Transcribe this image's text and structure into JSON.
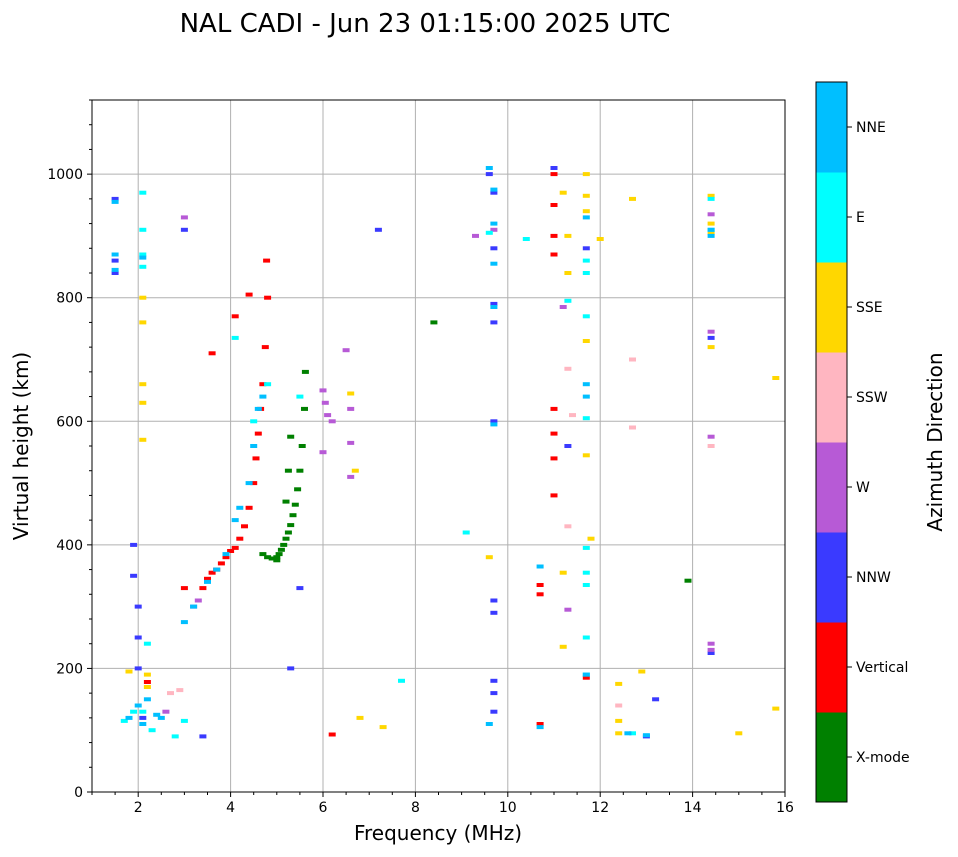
{
  "chart_data": {
    "type": "scatter",
    "title": "NAL CADI - Jun 23 01:15:00 2025 UTC",
    "xlabel": "Frequency (MHz)",
    "ylabel": "Virtual height (km)",
    "xlim": [
      1,
      16
    ],
    "ylim": [
      0,
      1120
    ],
    "xticks": [
      2,
      4,
      6,
      8,
      10,
      12,
      14,
      16
    ],
    "yticks": [
      0,
      200,
      400,
      600,
      800,
      1000
    ],
    "grid": true,
    "colorbar": {
      "label": "Azimuth Direction",
      "categories": [
        "X-mode",
        "Vertical",
        "NNW",
        "W",
        "SSW",
        "SSE",
        "E",
        "NNE"
      ],
      "colors": {
        "X-mode": "#008000",
        "Vertical": "#ff0000",
        "NNW": "#3a3aff",
        "W": "#b75ad6",
        "SSW": "#ffb6c1",
        "SSE": "#ffd700",
        "E": "#00ffff",
        "NNE": "#00bfff"
      }
    },
    "series": [
      {
        "name": "X-mode",
        "points": [
          [
            5.0,
            375
          ],
          [
            5.05,
            385
          ],
          [
            5.1,
            392
          ],
          [
            5.15,
            400
          ],
          [
            5.2,
            410
          ],
          [
            5.25,
            420
          ],
          [
            5.3,
            432
          ],
          [
            5.35,
            448
          ],
          [
            5.4,
            465
          ],
          [
            5.45,
            490
          ],
          [
            5.5,
            520
          ],
          [
            5.55,
            560
          ],
          [
            5.6,
            620
          ],
          [
            5.62,
            680
          ],
          [
            5.2,
            470
          ],
          [
            5.25,
            520
          ],
          [
            5.3,
            575
          ],
          [
            4.7,
            385
          ],
          [
            4.8,
            380
          ],
          [
            4.9,
            378
          ],
          [
            5.0,
            380
          ],
          [
            8.4,
            760
          ],
          [
            13.9,
            342
          ]
        ]
      },
      {
        "name": "Vertical",
        "points": [
          [
            3.4,
            330
          ],
          [
            3.5,
            345
          ],
          [
            3.6,
            355
          ],
          [
            3.7,
            360
          ],
          [
            3.8,
            370
          ],
          [
            3.9,
            380
          ],
          [
            4.0,
            390
          ],
          [
            4.1,
            395
          ],
          [
            4.2,
            410
          ],
          [
            4.3,
            430
          ],
          [
            4.4,
            460
          ],
          [
            4.5,
            500
          ],
          [
            4.55,
            540
          ],
          [
            4.6,
            580
          ],
          [
            4.65,
            620
          ],
          [
            4.7,
            660
          ],
          [
            4.75,
            720
          ],
          [
            4.8,
            800
          ],
          [
            4.78,
            860
          ],
          [
            3.6,
            710
          ],
          [
            4.1,
            770
          ],
          [
            4.4,
            805
          ],
          [
            3.0,
            330
          ],
          [
            2.2,
            178
          ],
          [
            6.2,
            93
          ],
          [
            11.0,
            1000
          ],
          [
            11.0,
            950
          ],
          [
            11.0,
            900
          ],
          [
            11.0,
            870
          ],
          [
            11.0,
            620
          ],
          [
            11.0,
            580
          ],
          [
            11.0,
            540
          ],
          [
            11.0,
            480
          ],
          [
            10.7,
            320
          ],
          [
            10.7,
            335
          ],
          [
            10.7,
            110
          ],
          [
            11.7,
            185
          ]
        ]
      },
      {
        "name": "NNW",
        "points": [
          [
            1.5,
            960
          ],
          [
            1.5,
            860
          ],
          [
            1.5,
            840
          ],
          [
            3.0,
            910
          ],
          [
            2.1,
            120
          ],
          [
            1.9,
            400
          ],
          [
            1.9,
            350
          ],
          [
            2.0,
            300
          ],
          [
            2.0,
            250
          ],
          [
            2.0,
            200
          ],
          [
            3.4,
            90
          ],
          [
            9.6,
            1000
          ],
          [
            9.7,
            970
          ],
          [
            9.7,
            880
          ],
          [
            9.7,
            790
          ],
          [
            9.7,
            760
          ],
          [
            9.7,
            600
          ],
          [
            9.7,
            310
          ],
          [
            9.7,
            290
          ],
          [
            9.7,
            180
          ],
          [
            9.7,
            160
          ],
          [
            9.7,
            130
          ],
          [
            7.2,
            910
          ],
          [
            11.0,
            1010
          ],
          [
            11.3,
            560
          ],
          [
            11.7,
            880
          ],
          [
            13.0,
            90
          ],
          [
            13.2,
            150
          ],
          [
            14.4,
            735
          ],
          [
            14.4,
            225
          ],
          [
            5.5,
            330
          ],
          [
            5.3,
            200
          ]
        ]
      },
      {
        "name": "W",
        "points": [
          [
            6.0,
            650
          ],
          [
            6.05,
            630
          ],
          [
            6.1,
            610
          ],
          [
            6.2,
            600
          ],
          [
            6.0,
            550
          ],
          [
            6.6,
            620
          ],
          [
            6.6,
            565
          ],
          [
            6.6,
            510
          ],
          [
            6.5,
            715
          ],
          [
            3.0,
            930
          ],
          [
            3.2,
            300
          ],
          [
            3.3,
            310
          ],
          [
            2.6,
            130
          ],
          [
            14.4,
            935
          ],
          [
            14.4,
            745
          ],
          [
            14.4,
            575
          ],
          [
            14.4,
            240
          ],
          [
            14.4,
            230
          ],
          [
            11.2,
            785
          ],
          [
            11.3,
            295
          ],
          [
            9.3,
            900
          ],
          [
            9.7,
            910
          ]
        ]
      },
      {
        "name": "SSW",
        "points": [
          [
            12.7,
            700
          ],
          [
            12.7,
            590
          ],
          [
            11.4,
            610
          ],
          [
            11.3,
            430
          ],
          [
            12.4,
            140
          ],
          [
            14.4,
            560
          ],
          [
            11.3,
            685
          ],
          [
            2.7,
            160
          ],
          [
            2.9,
            165
          ]
        ]
      },
      {
        "name": "SSE",
        "points": [
          [
            2.1,
            800
          ],
          [
            2.1,
            760
          ],
          [
            2.1,
            660
          ],
          [
            2.1,
            630
          ],
          [
            2.1,
            570
          ],
          [
            2.2,
            190
          ],
          [
            2.2,
            170
          ],
          [
            6.6,
            645
          ],
          [
            6.7,
            520
          ],
          [
            6.8,
            120
          ],
          [
            7.3,
            105
          ],
          [
            9.6,
            380
          ],
          [
            11.3,
            900
          ],
          [
            11.3,
            840
          ],
          [
            11.7,
            1000
          ],
          [
            11.7,
            965
          ],
          [
            11.7,
            940
          ],
          [
            11.7,
            730
          ],
          [
            11.7,
            545
          ],
          [
            11.2,
            970
          ],
          [
            11.2,
            355
          ],
          [
            11.2,
            235
          ],
          [
            11.8,
            410
          ],
          [
            12.0,
            895
          ],
          [
            12.7,
            960
          ],
          [
            12.4,
            175
          ],
          [
            12.4,
            115
          ],
          [
            12.4,
            95
          ],
          [
            12.9,
            195
          ],
          [
            14.4,
            965
          ],
          [
            14.4,
            920
          ],
          [
            14.4,
            905
          ],
          [
            14.4,
            720
          ],
          [
            15.0,
            95
          ],
          [
            15.8,
            670
          ],
          [
            15.8,
            135
          ],
          [
            1.8,
            195
          ]
        ]
      },
      {
        "name": "E",
        "points": [
          [
            2.1,
            970
          ],
          [
            2.1,
            910
          ],
          [
            2.1,
            870
          ],
          [
            2.1,
            850
          ],
          [
            2.2,
            240
          ],
          [
            2.8,
            90
          ],
          [
            3.0,
            115
          ],
          [
            2.3,
            100
          ],
          [
            4.1,
            735
          ],
          [
            4.5,
            600
          ],
          [
            4.8,
            660
          ],
          [
            5.5,
            640
          ],
          [
            7.7,
            180
          ],
          [
            9.1,
            420
          ],
          [
            9.6,
            905
          ],
          [
            10.4,
            895
          ],
          [
            11.3,
            795
          ],
          [
            11.7,
            860
          ],
          [
            11.7,
            840
          ],
          [
            11.7,
            770
          ],
          [
            11.7,
            605
          ],
          [
            11.7,
            395
          ],
          [
            11.7,
            355
          ],
          [
            11.7,
            335
          ],
          [
            11.7,
            250
          ],
          [
            11.7,
            190
          ],
          [
            12.7,
            95
          ],
          [
            14.4,
            960
          ],
          [
            14.4,
            910
          ],
          [
            2.1,
            130
          ],
          [
            1.9,
            130
          ],
          [
            1.7,
            115
          ]
        ]
      },
      {
        "name": "NNE",
        "points": [
          [
            1.5,
            955
          ],
          [
            1.5,
            870
          ],
          [
            1.5,
            845
          ],
          [
            2.1,
            865
          ],
          [
            2.1,
            110
          ],
          [
            1.8,
            120
          ],
          [
            2.0,
            140
          ],
          [
            2.2,
            150
          ],
          [
            2.4,
            125
          ],
          [
            2.5,
            120
          ],
          [
            3.0,
            275
          ],
          [
            3.2,
            300
          ],
          [
            3.5,
            340
          ],
          [
            3.7,
            360
          ],
          [
            3.9,
            385
          ],
          [
            4.1,
            440
          ],
          [
            4.2,
            460
          ],
          [
            4.4,
            500
          ],
          [
            4.5,
            560
          ],
          [
            4.6,
            620
          ],
          [
            4.7,
            640
          ],
          [
            9.6,
            1010
          ],
          [
            9.7,
            975
          ],
          [
            9.7,
            920
          ],
          [
            9.7,
            855
          ],
          [
            9.7,
            785
          ],
          [
            9.7,
            595
          ],
          [
            9.6,
            110
          ],
          [
            10.7,
            365
          ],
          [
            10.7,
            105
          ],
          [
            11.7,
            930
          ],
          [
            11.7,
            660
          ],
          [
            11.7,
            640
          ],
          [
            11.7,
            190
          ],
          [
            12.6,
            95
          ],
          [
            13.0,
            92
          ],
          [
            14.4,
            910
          ],
          [
            14.4,
            900
          ]
        ]
      }
    ]
  }
}
